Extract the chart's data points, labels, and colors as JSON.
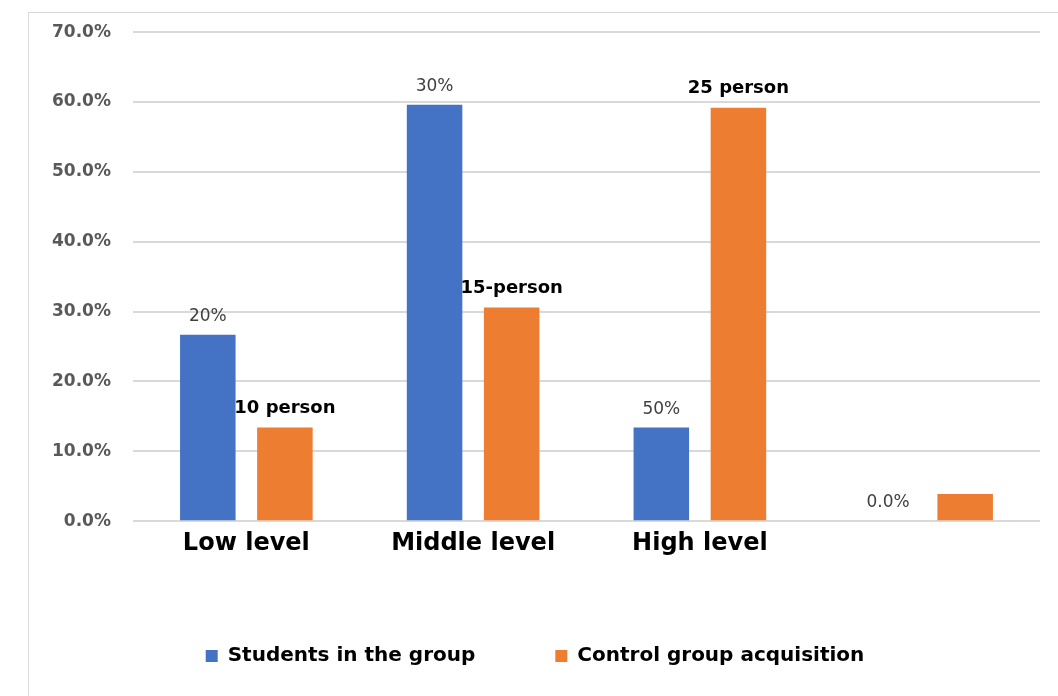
{
  "chart_data": {
    "type": "bar",
    "categories": [
      "Low level",
      "Middle level",
      "High level",
      null
    ],
    "series": [
      {
        "name": "Students in the group",
        "color": "#4472c4",
        "values": [
          26.7,
          59.6,
          13.4,
          0
        ]
      },
      {
        "name": "Control group acquisition",
        "color": "#ed7d31",
        "values": [
          13.4,
          30.6,
          59.2,
          3.9
        ]
      }
    ],
    "annotations": [
      "20%",
      "30%",
      "50%",
      "0.0%",
      "10 person",
      "15-person",
      "25 person"
    ],
    "ylim": [
      0,
      70
    ],
    "yticks": [
      {
        "value": 0,
        "label": "0.0%"
      },
      {
        "value": 10,
        "label": "10.0%"
      },
      {
        "value": 20,
        "label": "20.0%"
      },
      {
        "value": 30,
        "label": "30.0%"
      },
      {
        "value": 40,
        "label": "40.0%"
      },
      {
        "value": 50,
        "label": "50.0%"
      },
      {
        "value": 60,
        "label": "60.0%"
      },
      {
        "value": 70,
        "label": "70.0%"
      }
    ],
    "grid": "y",
    "legend": "bottom"
  }
}
